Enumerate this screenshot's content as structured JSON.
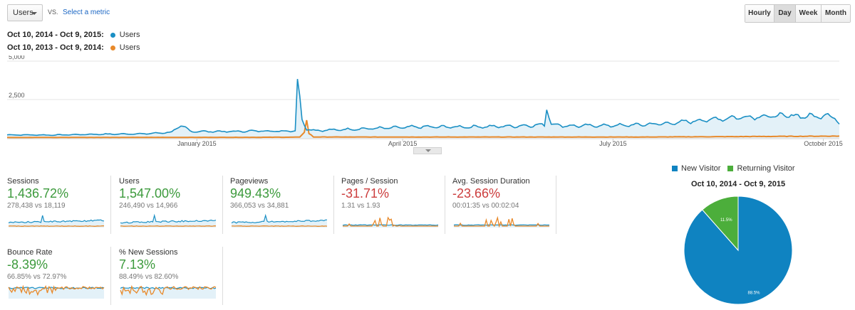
{
  "toolbar": {
    "metric_select": "Users",
    "vs_label": "VS.",
    "select_metric_link": "Select a metric",
    "granularity": [
      {
        "label": "Hourly",
        "active": false
      },
      {
        "label": "Day",
        "active": true
      },
      {
        "label": "Week",
        "active": false
      },
      {
        "label": "Month",
        "active": false
      }
    ]
  },
  "legend": [
    {
      "range": "Oct 10, 2014 - Oct 9, 2015:",
      "series": "Users",
      "color": "#1a8fc4"
    },
    {
      "range": "Oct 10, 2013 - Oct 9, 2014:",
      "series": "Users",
      "color": "#e8892a"
    }
  ],
  "colors": {
    "current": "#1a8fc4",
    "current_fill": "#e3f1f8",
    "previous": "#e8892a",
    "positive": "#3c9a3c",
    "negative": "#cc3d3d",
    "new_visitor": "#0f83c1",
    "returning_visitor": "#4cae3b"
  },
  "chart_data": [
    {
      "type": "line",
      "ylim": [
        0,
        5000
      ],
      "yticks": [
        "5,000",
        "2,500"
      ],
      "ytick_values": [
        5000,
        2500
      ],
      "xticks": [
        "January 2015",
        "April 2015",
        "July 2015",
        "October 2015"
      ],
      "xtick_day_index": [
        83,
        173,
        265,
        357
      ],
      "series": [
        {
          "name": "Users",
          "range": "Oct 10, 2014 - Oct 9, 2015",
          "color": "#1a8fc4",
          "keypoints": [
            [
              0,
              200
            ],
            [
              20,
              190
            ],
            [
              40,
              240
            ],
            [
              60,
              270
            ],
            [
              70,
              350
            ],
            [
              72,
              380
            ],
            [
              74,
              600
            ],
            [
              76,
              800
            ],
            [
              78,
              650
            ],
            [
              80,
              450
            ],
            [
              82,
              420
            ],
            [
              100,
              420
            ],
            [
              110,
              460
            ],
            [
              120,
              440
            ],
            [
              126,
              480
            ],
            [
              127,
              3650
            ],
            [
              129,
              1200
            ],
            [
              131,
              600
            ],
            [
              135,
              480
            ],
            [
              160,
              620
            ],
            [
              180,
              720
            ],
            [
              200,
              720
            ],
            [
              220,
              760
            ],
            [
              235,
              850
            ],
            [
              236,
              2050
            ],
            [
              238,
              900
            ],
            [
              245,
              780
            ],
            [
              270,
              820
            ],
            [
              290,
              950
            ],
            [
              300,
              1100
            ],
            [
              320,
              1350
            ],
            [
              340,
              1450
            ],
            [
              355,
              1400
            ],
            [
              358,
              1500
            ],
            [
              362,
              1400
            ],
            [
              364,
              900
            ]
          ]
        },
        {
          "name": "Users",
          "range": "Oct 10, 2013 - Oct 9, 2014",
          "color": "#e8892a",
          "keypoints": [
            [
              0,
              30
            ],
            [
              100,
              40
            ],
            [
              128,
              50
            ],
            [
              130,
              400
            ],
            [
              131,
              1100
            ],
            [
              132,
              300
            ],
            [
              134,
              60
            ],
            [
              200,
              60
            ],
            [
              280,
              60
            ],
            [
              364,
              120
            ]
          ]
        }
      ]
    },
    {
      "type": "pie",
      "title": "Oct 10, 2014 - Oct 9, 2015",
      "slices": [
        {
          "label": "New Visitor",
          "value": 88.5,
          "display": "88.5%",
          "color": "#0f83c1"
        },
        {
          "label": "Returning Visitor",
          "value": 11.5,
          "display": "11.5%",
          "color": "#4cae3b"
        }
      ]
    }
  ],
  "scorecards": [
    {
      "label": "Sessions",
      "value": "1,436.72%",
      "compare": "278,438 vs 18,119",
      "tone": "pos",
      "spark": "normal"
    },
    {
      "label": "Users",
      "value": "1,547.00%",
      "compare": "246,490 vs 14,966",
      "tone": "pos",
      "spark": "normal"
    },
    {
      "label": "Pageviews",
      "value": "949.43%",
      "compare": "366,053 vs 34,881",
      "tone": "pos",
      "spark": "normal"
    },
    {
      "label": "Pages / Session",
      "value": "-31.71%",
      "compare": "1.31 vs 1.93",
      "tone": "neg",
      "spark": "spiky"
    },
    {
      "label": "Avg. Session Duration",
      "value": "-23.66%",
      "compare": "00:01:35 vs 00:02:04",
      "tone": "neg",
      "spark": "spiky"
    },
    {
      "label": "Bounce Rate",
      "value": "-8.39%",
      "compare": "66.85% vs 72.97%",
      "tone": "pos",
      "spark": "noisy"
    },
    {
      "label": "% New Sessions",
      "value": "7.13%",
      "compare": "88.49% vs 82.60%",
      "tone": "pos",
      "spark": "noisy"
    }
  ]
}
